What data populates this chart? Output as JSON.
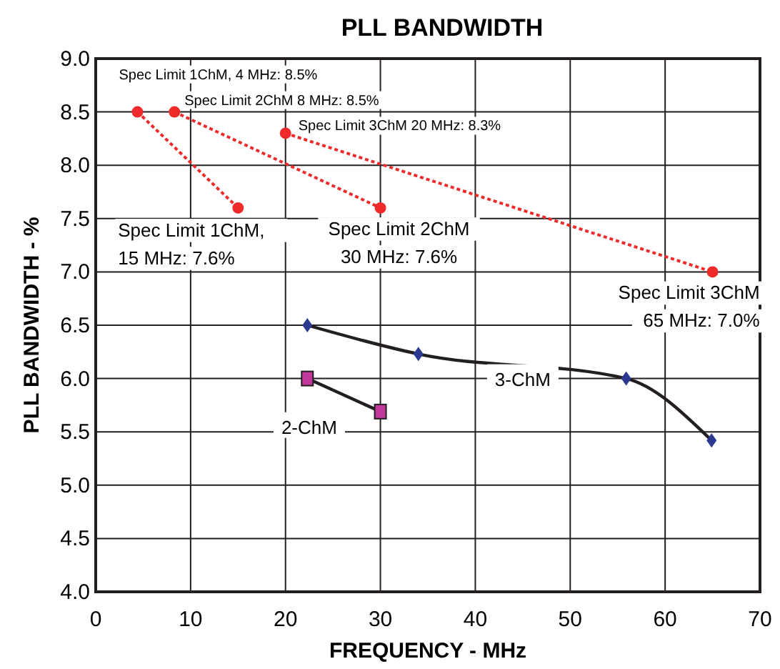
{
  "chart_data": {
    "type": "line",
    "title": "PLL BANDWIDTH",
    "xlabel": "FREQUENCY - MHz",
    "ylabel": "PLL BANDWIDTH - %",
    "xlim": [
      0,
      70
    ],
    "xticks": [
      0,
      10,
      20,
      30,
      40,
      50,
      60,
      70
    ],
    "ylim": [
      4,
      9
    ],
    "yticks": [
      {
        "value": 4,
        "label": "4.0"
      },
      {
        "value": 4.5,
        "label": "4.5"
      },
      {
        "value": 5,
        "label": "5.0"
      },
      {
        "value": 5.5,
        "label": "5.5"
      },
      {
        "value": 6,
        "label": "6.0"
      },
      {
        "value": 6.5,
        "label": "6.5"
      },
      {
        "value": 7,
        "label": "7.0"
      },
      {
        "value": 7.5,
        "label": "7.5"
      },
      {
        "value": 8,
        "label": "8.0"
      },
      {
        "value": 8.5,
        "label": "8.5"
      },
      {
        "value": 9,
        "label": "9.0"
      }
    ],
    "grid": true,
    "series": [
      {
        "x": [
          4.4,
          15
        ],
        "values": [
          8.5,
          7.6
        ],
        "color": "#ee2a2a",
        "marker": "circle",
        "line_style": "dotted"
      },
      {
        "x": [
          8.3,
          30
        ],
        "values": [
          8.5,
          7.6
        ],
        "color": "#ee2a2a",
        "marker": "circle",
        "line_style": "dotted"
      },
      {
        "x": [
          20,
          65
        ],
        "values": [
          8.3,
          7.0
        ],
        "color": "#ee2a2a",
        "marker": "circle",
        "line_style": "dotted"
      },
      {
        "name": "3-ChM",
        "x": [
          22.3,
          34.0,
          55.9,
          64.9
        ],
        "values": [
          6.5,
          6.23,
          6.0,
          5.42
        ],
        "color": "#2b3990",
        "marker": "diamond",
        "line_style": "solid"
      },
      {
        "name": "2-ChM",
        "x": [
          22.3,
          30
        ],
        "values": [
          6.0,
          5.69
        ],
        "color": "#c0399a",
        "marker": "square",
        "line_style": "solid"
      }
    ],
    "annotations": [
      {
        "text": "Spec Limit 1ChM, 4 MHz: 8.5%",
        "x": 4.4,
        "y": 8.5
      },
      {
        "text": "Spec Limit 2ChM 8 MHz: 8.5%",
        "x": 8.3,
        "y": 8.5
      },
      {
        "text": "Spec Limit 3ChM 20 MHz: 8.3%",
        "x": 20,
        "y": 8.3
      },
      {
        "text": "Spec Limit 1ChM,\n15 MHz: 7.6%",
        "x": 15,
        "y": 7.6
      },
      {
        "text": "Spec Limit 2ChM\n30 MHz: 7.6%",
        "x": 30,
        "y": 7.6
      },
      {
        "text": "Spec Limit 3ChM\n65 MHz: 7.0%",
        "x": 65,
        "y": 7.0
      }
    ]
  }
}
